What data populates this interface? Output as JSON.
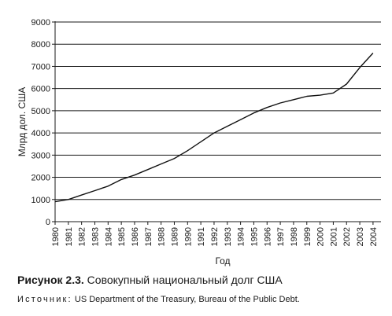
{
  "chart_data": {
    "type": "line",
    "title": "",
    "xlabel": "Год",
    "ylabel": "Млрд дол. США",
    "x": [
      "1980",
      "1981",
      "1982",
      "1983",
      "1984",
      "1985",
      "1986",
      "1987",
      "1988",
      "1989",
      "1990",
      "1991",
      "1992",
      "1993",
      "1994",
      "1995",
      "1996",
      "1997",
      "1998",
      "1999",
      "2000",
      "2001",
      "2002",
      "2003",
      "2004"
    ],
    "series": [
      {
        "values": [
          900,
          1000,
          1200,
          1400,
          1600,
          1900,
          2100,
          2350,
          2600,
          2850,
          3200,
          3600,
          4000,
          4300,
          4600,
          4900,
          5150,
          5350,
          5500,
          5650,
          5700,
          5800,
          6200,
          6950,
          7600
        ]
      }
    ],
    "xlim": [
      1980,
      2004.6
    ],
    "ylim": [
      0,
      9000
    ],
    "yticks": [
      "0",
      "1000",
      "2000",
      "3000",
      "4000",
      "5000",
      "6000",
      "7000",
      "8000",
      "9000"
    ],
    "grid": "horizontal",
    "line_color": "#111111",
    "legend": "none"
  },
  "caption": {
    "label": "Рисунок 2.3.",
    "text": "Совокупный национальный долг США"
  },
  "source": {
    "label": "Источник:",
    "text": "US Department of the Treasury, Bureau of the Public Debt."
  }
}
